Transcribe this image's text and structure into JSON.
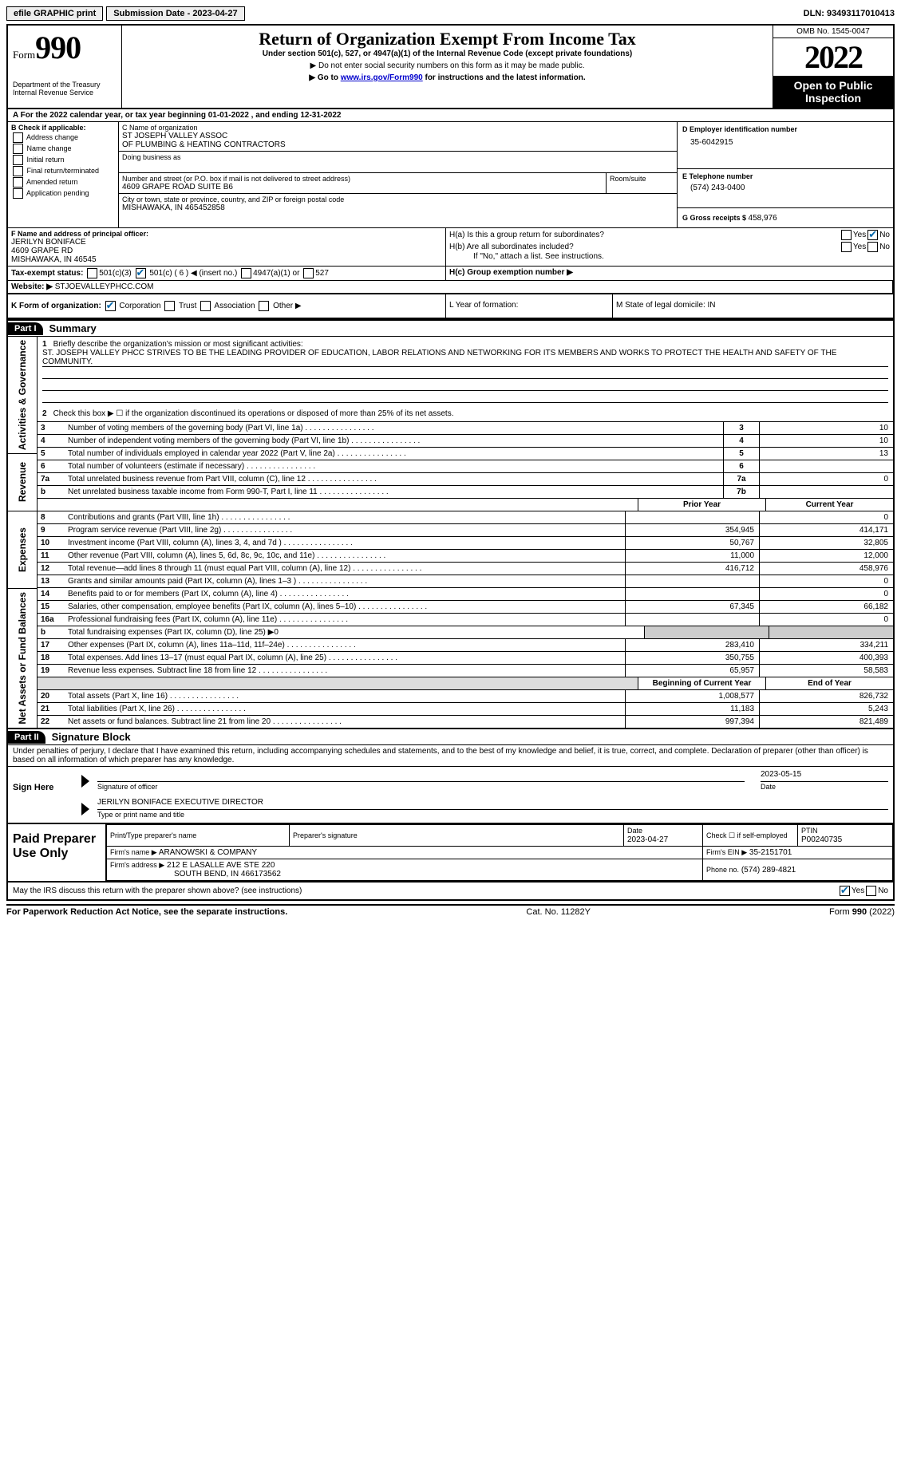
{
  "topbar": {
    "efile": "efile GRAPHIC print",
    "submission_label": "Submission Date - 2023-04-27",
    "dln": "DLN: 93493117010413"
  },
  "header": {
    "form_word": "Form",
    "form_num": "990",
    "dept": "Department of the Treasury",
    "irs": "Internal Revenue Service",
    "title": "Return of Organization Exempt From Income Tax",
    "subtitle": "Under section 501(c), 527, or 4947(a)(1) of the Internal Revenue Code (except private foundations)",
    "note1": "▶ Do not enter social security numbers on this form as it may be made public.",
    "note2_pre": "▶ Go to ",
    "note2_link": "www.irs.gov/Form990",
    "note2_post": " for instructions and the latest information.",
    "omb": "OMB No. 1545-0047",
    "year": "2022",
    "open": "Open to Public Inspection"
  },
  "sectionA": {
    "cal_year": "A For the 2022 calendar year, or tax year beginning 01-01-2022   , and ending 12-31-2022",
    "b_label": "B Check if applicable:",
    "b_opts": [
      "Address change",
      "Name change",
      "Initial return",
      "Final return/terminated",
      "Amended return",
      "Application pending"
    ],
    "c_label": "C Name of organization",
    "org1": "ST JOSEPH VALLEY ASSOC",
    "org2": "OF PLUMBING & HEATING CONTRACTORS",
    "dba_label": "Doing business as",
    "street_label": "Number and street (or P.O. box if mail is not delivered to street address)",
    "room_label": "Room/suite",
    "street": "4609 GRAPE ROAD SUITE B6",
    "city_label": "City or town, state or province, country, and ZIP or foreign postal code",
    "city": "MISHAWAKA, IN  465452858",
    "d_label": "D Employer identification number",
    "ein": "35-6042915",
    "e_label": "E Telephone number",
    "phone": "(574) 243-0400",
    "g_label": "G Gross receipts $ ",
    "gross": "458,976",
    "f_label": "F Name and address of principal officer:",
    "officer_name": "JERILYN BONIFACE",
    "officer_addr1": "4609 GRAPE RD",
    "officer_addr2": "MISHAWAKA, IN  46545",
    "ha_label": "H(a)  Is this a group return for subordinates?",
    "hb_label": "H(b)  Are all subordinates included?",
    "hb_note": "If \"No,\" attach a list. See instructions.",
    "hc_label": "H(c)  Group exemption number ▶",
    "yes": "Yes",
    "no": "No",
    "i_label": "Tax-exempt status:",
    "i_501c3": "501(c)(3)",
    "i_501c_pre": "501(c) ( ",
    "i_501c_num": "6",
    "i_501c_post": " ) ◀ (insert no.)",
    "i_4947": "4947(a)(1) or",
    "i_527": "527",
    "j_label": "Website: ▶",
    "website": " STJOEVALLEYPHCC.COM",
    "k_label": "K Form of organization:",
    "k_opts": [
      "Corporation",
      "Trust",
      "Association",
      "Other ▶"
    ],
    "l_label": "L Year of formation:",
    "m_label": "M State of legal domicile: IN"
  },
  "parts": {
    "p1": "Part I",
    "p1_title": "Summary",
    "p2": "Part II",
    "p2_title": "Signature Block"
  },
  "summary_top": {
    "l1_label": "Briefly describe the organization's mission or most significant activities:",
    "l1_text": "ST. JOSEPH VALLEY PHCC STRIVES TO BE THE LEADING PROVIDER OF EDUCATION, LABOR RELATIONS AND NETWORKING FOR ITS MEMBERS AND WORKS TO PROTECT THE HEALTH AND SAFETY OF THE COMMUNITY.",
    "l2_label": "Check this box ▶ ☐ if the organization discontinued its operations or disposed of more than 25% of its net assets."
  },
  "side_labels": {
    "gov": "Activities & Governance",
    "rev": "Revenue",
    "exp": "Expenses",
    "net": "Net Assets or Fund Balances"
  },
  "cols": {
    "prior": "Prior Year",
    "current": "Current Year",
    "boy": "Beginning of Current Year",
    "eoy": "End of Year"
  },
  "lines": [
    {
      "n": "3",
      "t": "Number of voting members of the governing body (Part VI, line 1a)",
      "box": "3",
      "v": "10"
    },
    {
      "n": "4",
      "t": "Number of independent voting members of the governing body (Part VI, line 1b)",
      "box": "4",
      "v": "10"
    },
    {
      "n": "5",
      "t": "Total number of individuals employed in calendar year 2022 (Part V, line 2a)",
      "box": "5",
      "v": "13"
    },
    {
      "n": "6",
      "t": "Total number of volunteers (estimate if necessary)",
      "box": "6",
      "v": ""
    },
    {
      "n": "7a",
      "t": "Total unrelated business revenue from Part VIII, column (C), line 12",
      "box": "7a",
      "v": "0"
    },
    {
      "n": "b",
      "t": "Net unrelated business taxable income from Form 990-T, Part I, line 11",
      "box": "7b",
      "v": ""
    }
  ],
  "rev": [
    {
      "n": "8",
      "t": "Contributions and grants (Part VIII, line 1h)",
      "p": "",
      "c": "0"
    },
    {
      "n": "9",
      "t": "Program service revenue (Part VIII, line 2g)",
      "p": "354,945",
      "c": "414,171"
    },
    {
      "n": "10",
      "t": "Investment income (Part VIII, column (A), lines 3, 4, and 7d )",
      "p": "50,767",
      "c": "32,805"
    },
    {
      "n": "11",
      "t": "Other revenue (Part VIII, column (A), lines 5, 6d, 8c, 9c, 10c, and 11e)",
      "p": "11,000",
      "c": "12,000"
    },
    {
      "n": "12",
      "t": "Total revenue—add lines 8 through 11 (must equal Part VIII, column (A), line 12)",
      "p": "416,712",
      "c": "458,976"
    }
  ],
  "exp": [
    {
      "n": "13",
      "t": "Grants and similar amounts paid (Part IX, column (A), lines 1–3 )",
      "p": "",
      "c": "0"
    },
    {
      "n": "14",
      "t": "Benefits paid to or for members (Part IX, column (A), line 4)",
      "p": "",
      "c": "0"
    },
    {
      "n": "15",
      "t": "Salaries, other compensation, employee benefits (Part IX, column (A), lines 5–10)",
      "p": "67,345",
      "c": "66,182"
    },
    {
      "n": "16a",
      "t": "Professional fundraising fees (Part IX, column (A), line 11e)",
      "p": "",
      "c": "0"
    },
    {
      "n": "b",
      "t": "Total fundraising expenses (Part IX, column (D), line 25) ▶0",
      "shade": true
    },
    {
      "n": "17",
      "t": "Other expenses (Part IX, column (A), lines 11a–11d, 11f–24e)",
      "p": "283,410",
      "c": "334,211"
    },
    {
      "n": "18",
      "t": "Total expenses. Add lines 13–17 (must equal Part IX, column (A), line 25)",
      "p": "350,755",
      "c": "400,393"
    },
    {
      "n": "19",
      "t": "Revenue less expenses. Subtract line 18 from line 12",
      "p": "65,957",
      "c": "58,583"
    }
  ],
  "net": [
    {
      "n": "20",
      "t": "Total assets (Part X, line 16)",
      "p": "1,008,577",
      "c": "826,732"
    },
    {
      "n": "21",
      "t": "Total liabilities (Part X, line 26)",
      "p": "11,183",
      "c": "5,243"
    },
    {
      "n": "22",
      "t": "Net assets or fund balances. Subtract line 21 from line 20",
      "p": "997,394",
      "c": "821,489"
    }
  ],
  "sig": {
    "penalty": "Under penalties of perjury, I declare that I have examined this return, including accompanying schedules and statements, and to the best of my knowledge and belief, it is true, correct, and complete. Declaration of preparer (other than officer) is based on all information of which preparer has any knowledge.",
    "sign_here": "Sign Here",
    "sig_officer": "Signature of officer",
    "date": "Date",
    "date_val": "2023-05-15",
    "name_title": "JERILYN BONIFACE  EXECUTIVE DIRECTOR",
    "type_name": "Type or print name and title",
    "paid": "Paid Preparer Use Only",
    "prep_name_label": "Print/Type preparer's name",
    "prep_sig_label": "Preparer's signature",
    "prep_date_label": "Date",
    "prep_date": "2023-04-27",
    "check_self": "Check ☐ if self-employed",
    "ptin_label": "PTIN",
    "ptin": "P00240735",
    "firm_name_label": "Firm's name    ▶",
    "firm_name": "ARANOWSKI & COMPANY",
    "firm_ein_label": "Firm's EIN ▶",
    "firm_ein": "35-2151701",
    "firm_addr_label": "Firm's address ▶",
    "firm_addr1": "212 E LASALLE AVE STE 220",
    "firm_addr2": "SOUTH BEND, IN  466173562",
    "firm_phone_label": "Phone no.",
    "firm_phone": "(574) 289-4821",
    "discuss": "May the IRS discuss this return with the preparer shown above? (see instructions)"
  },
  "footer": {
    "paperwork": "For Paperwork Reduction Act Notice, see the separate instructions.",
    "cat": "Cat. No. 11282Y",
    "form": "Form 990 (2022)"
  }
}
